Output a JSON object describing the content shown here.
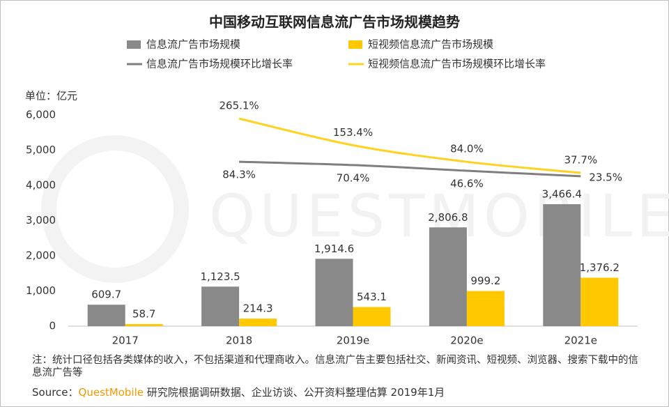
{
  "chart_data": {
    "type": "bar",
    "title": "中国移动互联网信息流广告市场规模趋势",
    "unit_label": "单位：亿元",
    "watermark": "QUESTMOBILE",
    "categories": [
      "2017",
      "2018",
      "2019e",
      "2020e",
      "2021e"
    ],
    "ylim": [
      0,
      6000
    ],
    "yticks": [
      0,
      {
        "value": 1000,
        "label": "1,000"
      },
      {
        "value": 2000,
        "label": "2,000"
      },
      {
        "value": 3000,
        "label": "3,000"
      },
      {
        "value": 4000,
        "label": "4,000"
      },
      {
        "value": 5000,
        "label": "5,000"
      },
      {
        "value": 6000,
        "label": "6,000"
      }
    ],
    "y2lim": [
      -604,
      280
    ],
    "grid": false,
    "series": [
      {
        "name": "信息流广告市场规模",
        "type": "bar",
        "color": "#898989",
        "values": [
          609.7,
          1123.5,
          1914.6,
          2806.8,
          3466.4
        ],
        "value_labels": [
          "609.7",
          "1,123.5",
          "1,914.6",
          "2,806.8",
          "3,466.4"
        ]
      },
      {
        "name": "短视频信息流广告市场规模",
        "type": "bar",
        "color": "#ffc800",
        "values": [
          58.7,
          214.3,
          543.1,
          999.2,
          1376.2
        ],
        "value_labels": [
          "58.7",
          "214.3",
          "543.1",
          "999.2",
          "1,376.2"
        ]
      },
      {
        "name": "信息流广告市场规模环比增长率",
        "type": "line",
        "axis": "y2",
        "color": "#7f7f7f",
        "values": [
          null,
          84.3,
          70.4,
          46.6,
          23.5
        ],
        "value_labels": [
          null,
          "84.3%",
          "70.4%",
          "46.6%",
          "23.5%"
        ]
      },
      {
        "name": "短视频信息流广告市场规模环比增长率",
        "type": "line",
        "axis": "y2",
        "color": "#ffd21f",
        "values": [
          null,
          265.1,
          153.4,
          84.0,
          37.7
        ],
        "value_labels": [
          null,
          "265.1%",
          "153.4%",
          "84.0%",
          "37.7%"
        ]
      }
    ],
    "note": "注：统计口径包括各类媒体的收入，不包括渠道和代理商收入。信息流广告主要包括社交、新闻资讯、短视频、浏览器、搜索下载中的信息流广告等",
    "source": {
      "label": "Source：",
      "brand": "QuestMobile",
      "text": "研究院根据调研数据、企业访谈、公开资料整理估算 2019年1月"
    }
  }
}
